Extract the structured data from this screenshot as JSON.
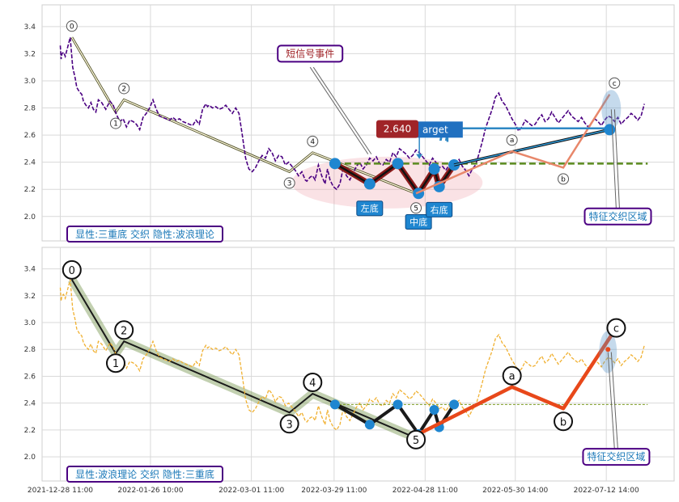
{
  "chart_data": [
    {
      "type": "line",
      "panel": "top",
      "title": "",
      "ylim": [
        1.82,
        3.56
      ],
      "yticks": [
        2.0,
        2.2,
        2.4,
        2.6,
        2.8,
        3.0,
        3.2,
        3.4
      ],
      "ytick_labels": [
        "2.0",
        "2.2",
        "2.4",
        "2.6",
        "2.8",
        "3.0",
        "3.2",
        "3.4"
      ],
      "grid": true,
      "price_color": "#4b0082",
      "series": [
        {
          "role": "price",
          "x": [
            0,
            1,
            2,
            4,
            6,
            9,
            12,
            15,
            18,
            20,
            23,
            26,
            28,
            31,
            34,
            37,
            40,
            43,
            46,
            50,
            55,
            60,
            64,
            68,
            72,
            76,
            80,
            84,
            88,
            92,
            96,
            100,
            104,
            108,
            112,
            116,
            120,
            124,
            128,
            132,
            136,
            140,
            144,
            148,
            152,
            156,
            160,
            164,
            168,
            172,
            176,
            178,
            180,
            184,
            188,
            192,
            196,
            200,
            204,
            208,
            212,
            216,
            220,
            224,
            228,
            232,
            236,
            240,
            244,
            248,
            252,
            256,
            260,
            264,
            268,
            272,
            276,
            280,
            284,
            288,
            292,
            296,
            298,
            302,
            305,
            308,
            312,
            316,
            320,
            323,
            326,
            330,
            334,
            338,
            342,
            346,
            350,
            354,
            358,
            362,
            366,
            370,
            374,
            378,
            382,
            386,
            390,
            394,
            398,
            402,
            406,
            410,
            414,
            418,
            422,
            426,
            430,
            434,
            438,
            442,
            446,
            450,
            454,
            458,
            462,
            466,
            470,
            474,
            478,
            482,
            486,
            490,
            494,
            498,
            502,
            506,
            510,
            514,
            518,
            522,
            526,
            530,
            534,
            538,
            542,
            546,
            550,
            554,
            558,
            562,
            566,
            570,
            574,
            578,
            582,
            586,
            590,
            594,
            598,
            602,
            606,
            610,
            614,
            618,
            622,
            626,
            630,
            634,
            638,
            642,
            646,
            650,
            654,
            658,
            662,
            666,
            670,
            674,
            678,
            682,
            686,
            690,
            694,
            698,
            702,
            706
          ],
          "y": [
            3.26,
            3.16,
            3.2,
            3.21,
            3.18,
            3.25,
            3.32,
            3.1,
            3.02,
            2.95,
            2.92,
            2.9,
            2.85,
            2.82,
            2.8,
            2.84,
            2.79,
            2.77,
            2.86,
            2.84,
            2.79,
            2.85,
            2.82,
            2.75,
            2.7,
            2.72,
            2.66,
            2.71,
            2.7,
            2.68,
            2.64,
            2.73,
            2.76,
            2.8,
            2.86,
            2.79,
            2.74,
            2.73,
            2.72,
            2.71,
            2.73,
            2.71,
            2.72,
            2.7,
            2.69,
            2.68,
            2.67,
            2.71,
            2.68,
            2.79,
            2.83,
            2.81,
            2.82,
            2.8,
            2.81,
            2.79,
            2.8,
            2.82,
            2.79,
            2.76,
            2.8,
            2.76,
            2.6,
            2.43,
            2.35,
            2.33,
            2.36,
            2.41,
            2.45,
            2.43,
            2.5,
            2.47,
            2.41,
            2.45,
            2.44,
            2.38,
            2.4,
            2.37,
            2.34,
            2.3,
            2.33,
            2.27,
            2.26,
            2.29,
            2.3,
            2.27,
            2.38,
            2.3,
            2.24,
            2.35,
            2.27,
            2.22,
            2.2,
            2.24,
            2.36,
            2.3,
            2.27,
            2.32,
            2.37,
            2.4,
            2.35,
            2.38,
            2.43,
            2.41,
            2.44,
            2.39,
            2.38,
            2.42,
            2.4,
            2.47,
            2.44,
            2.5,
            2.48,
            2.46,
            2.43,
            2.45,
            2.49,
            2.47,
            2.44,
            2.41,
            2.38,
            2.43,
            2.4,
            2.36,
            2.37,
            2.34,
            2.38,
            2.35,
            2.4,
            2.42,
            2.37,
            2.34,
            2.3,
            2.35,
            2.38,
            2.46,
            2.55,
            2.65,
            2.72,
            2.79,
            2.88,
            2.91,
            2.85,
            2.82,
            2.77,
            2.72,
            2.68,
            2.63,
            2.66,
            2.71,
            2.69,
            2.67,
            2.68,
            2.72,
            2.75,
            2.7,
            2.72,
            2.77,
            2.73,
            2.69,
            2.72,
            2.75,
            2.78,
            2.74,
            2.72,
            2.7,
            2.73,
            2.69,
            2.66,
            2.69,
            2.72,
            2.7,
            2.67,
            2.71,
            2.74,
            2.73,
            2.7,
            2.73,
            2.68,
            2.71,
            2.73,
            2.76,
            2.74,
            2.71,
            2.74,
            2.83
          ]
        }
      ],
      "wave_points": {
        "labels": [
          "0",
          "1",
          "2",
          "3",
          "4",
          "5",
          "a",
          "b",
          "c"
        ],
        "x": [
          14,
          67,
          77,
          277,
          305,
          430,
          546,
          608,
          664
        ],
        "y": [
          3.32,
          2.77,
          2.86,
          2.33,
          2.47,
          2.17,
          2.48,
          2.36,
          2.9
        ]
      },
      "triple_bottom_points": {
        "x": [
          332,
          374,
          408,
          433,
          452,
          458,
          476
        ],
        "y": [
          2.39,
          2.24,
          2.39,
          2.17,
          2.35,
          2.22,
          2.38
        ]
      },
      "target": {
        "value": 2.64,
        "label": "2.640",
        "text": "arget"
      },
      "neckline": 2.39,
      "bottom_labels": [
        "左底",
        "中底",
        "右底"
      ],
      "callouts": [
        "短信号事件",
        "特征交织区域"
      ],
      "legend_text": "显性:三重底 交织 隐性:波浪理论"
    },
    {
      "type": "line",
      "panel": "bottom",
      "title": "",
      "ylim": [
        1.82,
        3.56
      ],
      "yticks": [
        2.0,
        2.2,
        2.4,
        2.6,
        2.8,
        3.0,
        3.2,
        3.4
      ],
      "ytick_labels": [
        "2.0",
        "2.2",
        "2.4",
        "2.6",
        "2.8",
        "3.0",
        "3.2",
        "3.4"
      ],
      "grid": true,
      "price_color": "#f0b030",
      "series": [
        {
          "role": "price",
          "x": [
            0,
            1,
            2,
            4,
            6,
            9,
            12,
            15,
            18,
            20,
            23,
            26,
            28,
            31,
            34,
            37,
            40,
            43,
            46,
            50,
            55,
            60,
            64,
            68,
            72,
            76,
            80,
            84,
            88,
            92,
            96,
            100,
            104,
            108,
            112,
            116,
            120,
            124,
            128,
            132,
            136,
            140,
            144,
            148,
            152,
            156,
            160,
            164,
            168,
            172,
            176,
            178,
            180,
            184,
            188,
            192,
            196,
            200,
            204,
            208,
            212,
            216,
            220,
            224,
            228,
            232,
            236,
            240,
            244,
            248,
            252,
            256,
            260,
            264,
            268,
            272,
            276,
            280,
            284,
            288,
            292,
            296,
            298,
            302,
            305,
            308,
            312,
            316,
            320,
            323,
            326,
            330,
            334,
            338,
            342,
            346,
            350,
            354,
            358,
            362,
            366,
            370,
            374,
            378,
            382,
            386,
            390,
            394,
            398,
            402,
            406,
            410,
            414,
            418,
            422,
            426,
            430,
            434,
            438,
            442,
            446,
            450,
            454,
            458,
            462,
            466,
            470,
            474,
            478,
            482,
            486,
            490,
            494,
            498,
            502,
            506,
            510,
            514,
            518,
            522,
            526,
            530,
            534,
            538,
            542,
            546,
            550,
            554,
            558,
            562,
            566,
            570,
            574,
            578,
            582,
            586,
            590,
            594,
            598,
            602,
            606,
            610,
            614,
            618,
            622,
            626,
            630,
            634,
            638,
            642,
            646,
            650,
            654,
            658,
            662,
            666,
            670,
            674,
            678,
            682,
            686,
            690,
            694,
            698,
            702,
            706
          ],
          "y": [
            3.26,
            3.16,
            3.2,
            3.21,
            3.18,
            3.25,
            3.32,
            3.1,
            3.02,
            2.95,
            2.92,
            2.9,
            2.85,
            2.82,
            2.8,
            2.84,
            2.79,
            2.77,
            2.86,
            2.84,
            2.79,
            2.85,
            2.82,
            2.75,
            2.7,
            2.72,
            2.66,
            2.71,
            2.7,
            2.68,
            2.64,
            2.73,
            2.76,
            2.8,
            2.86,
            2.79,
            2.74,
            2.73,
            2.72,
            2.71,
            2.73,
            2.71,
            2.72,
            2.7,
            2.69,
            2.68,
            2.67,
            2.71,
            2.68,
            2.79,
            2.83,
            2.81,
            2.82,
            2.8,
            2.81,
            2.79,
            2.8,
            2.82,
            2.79,
            2.76,
            2.8,
            2.76,
            2.6,
            2.43,
            2.35,
            2.33,
            2.36,
            2.41,
            2.45,
            2.43,
            2.5,
            2.47,
            2.41,
            2.45,
            2.44,
            2.38,
            2.4,
            2.37,
            2.34,
            2.3,
            2.33,
            2.27,
            2.26,
            2.29,
            2.3,
            2.27,
            2.38,
            2.3,
            2.24,
            2.35,
            2.27,
            2.22,
            2.2,
            2.24,
            2.36,
            2.3,
            2.27,
            2.32,
            2.37,
            2.4,
            2.35,
            2.38,
            2.43,
            2.41,
            2.44,
            2.39,
            2.38,
            2.42,
            2.4,
            2.47,
            2.44,
            2.5,
            2.48,
            2.46,
            2.43,
            2.45,
            2.49,
            2.47,
            2.44,
            2.41,
            2.38,
            2.43,
            2.4,
            2.36,
            2.37,
            2.34,
            2.38,
            2.35,
            2.4,
            2.42,
            2.37,
            2.34,
            2.3,
            2.35,
            2.38,
            2.46,
            2.55,
            2.65,
            2.72,
            2.79,
            2.88,
            2.91,
            2.85,
            2.82,
            2.77,
            2.72,
            2.68,
            2.63,
            2.66,
            2.71,
            2.69,
            2.67,
            2.68,
            2.72,
            2.75,
            2.7,
            2.72,
            2.77,
            2.73,
            2.69,
            2.72,
            2.75,
            2.78,
            2.74,
            2.72,
            2.7,
            2.73,
            2.69,
            2.66,
            2.69,
            2.72,
            2.7,
            2.67,
            2.71,
            2.74,
            2.73,
            2.7,
            2.73,
            2.68,
            2.71,
            2.73,
            2.76,
            2.74,
            2.71,
            2.74,
            2.83
          ]
        }
      ],
      "wave_points": {
        "labels": [
          "0",
          "1",
          "2",
          "3",
          "4",
          "5",
          "a",
          "b",
          "c"
        ],
        "x": [
          14,
          67,
          77,
          277,
          305,
          430,
          546,
          608,
          672
        ],
        "y": [
          3.32,
          2.77,
          2.86,
          2.33,
          2.47,
          2.14,
          2.52,
          2.36,
          2.96
        ]
      },
      "triple_bottom_points": {
        "x": [
          332,
          374,
          408,
          433,
          452,
          458,
          476
        ],
        "y": [
          2.39,
          2.24,
          2.39,
          2.17,
          2.35,
          2.22,
          2.39
        ]
      },
      "neckline": 2.39,
      "callouts": [
        "特征交织区域"
      ],
      "legend_text": "显性:波浪理论 交织 隐性:三重底"
    }
  ],
  "x_axis": {
    "tick_positions": [
      0,
      109,
      231,
      331,
      441,
      550,
      660
    ],
    "tick_labels": [
      "2021-12-28 11:00",
      "2022-01-26 10:00",
      "2022-03-01 11:00",
      "2022-03-29 11:00",
      "2022-04-28 11:00",
      "2022-05-30 14:00",
      "2022-07-12 14:00"
    ],
    "range": [
      -22,
      742
    ]
  }
}
